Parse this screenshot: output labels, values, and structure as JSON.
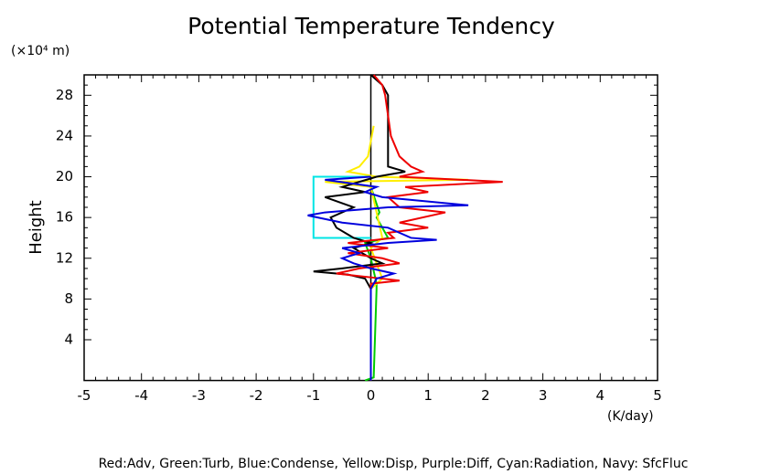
{
  "chart_data": {
    "type": "profile",
    "title": "Potential Temperature Tendency",
    "y_label": "Height",
    "y_unit": "(×10⁴ m)",
    "x_unit": "(K/day)",
    "footer": "Red:Adv, Green:Turb, Blue:Condense, Yellow:Disp, Purple:Diff, Cyan:Radiation, Navy: SfcFluc",
    "xlim": [
      -5,
      5
    ],
    "xticks": [
      -5,
      -4,
      -3,
      -2,
      -1,
      0,
      1,
      2,
      3,
      4,
      5
    ],
    "ylim": [
      0,
      30
    ],
    "yticks": [
      4,
      8,
      12,
      16,
      20,
      24,
      28
    ],
    "series": [
      {
        "color": "#00cc00",
        "heights": [
          19,
          16.5,
          16,
          14,
          13.5,
          12,
          9.5,
          9,
          0.3,
          0
        ],
        "values": [
          0,
          0.15,
          0.1,
          0.3,
          -0.1,
          0,
          0.1,
          0.1,
          0.05,
          -0.1
        ]
      },
      {
        "color": "#ffee00",
        "heights": [
          25,
          22,
          21,
          20.5,
          20,
          19.7,
          19.5,
          19,
          14,
          13,
          10,
          9,
          0
        ],
        "values": [
          0.05,
          -0.05,
          -0.2,
          -0.4,
          0.1,
          1.7,
          -0.8,
          0,
          0.2,
          0,
          0.2,
          0,
          0
        ]
      },
      {
        "color": "#00e5e5",
        "heights": [
          20,
          20,
          14,
          14
        ],
        "values": [
          0,
          -1,
          -1,
          0
        ]
      },
      {
        "color": "#000000",
        "heights": [
          30,
          29,
          28,
          26,
          24,
          22,
          21,
          20.5,
          20,
          19.5,
          19,
          18.5,
          18,
          17,
          16,
          15,
          14,
          13.5,
          13,
          12,
          11.5,
          11,
          10.7,
          10.4,
          10,
          9,
          0
        ],
        "values": [
          0,
          0.2,
          0.3,
          0.3,
          0.3,
          0.3,
          0.3,
          0.6,
          0.1,
          -0.2,
          -0.5,
          -0.1,
          -0.8,
          -0.3,
          -0.7,
          -0.6,
          -0.3,
          0,
          -0.3,
          0,
          0.2,
          -0.5,
          -1,
          -0.4,
          -0.1,
          0,
          0
        ]
      },
      {
        "color": "#ee0000",
        "heights": [
          30,
          29,
          28,
          26,
          24,
          22,
          21,
          20.5,
          20,
          19.5,
          19,
          18.5,
          18,
          17,
          16.5,
          15.5,
          15,
          14.5,
          14,
          13.5,
          13,
          12.5,
          12,
          11.5,
          11,
          10.5,
          10,
          9.8,
          9.5,
          9,
          0
        ],
        "values": [
          0.05,
          0.2,
          0.25,
          0.3,
          0.35,
          0.5,
          0.7,
          0.9,
          0.5,
          2.3,
          0.6,
          1,
          0.3,
          0.5,
          1.3,
          0.5,
          1,
          0.3,
          0.4,
          -0.4,
          0.3,
          -0.4,
          0.2,
          0.5,
          -0.2,
          -0.6,
          0.2,
          0.5,
          0,
          0,
          0
        ]
      },
      {
        "color": "#0000dd",
        "heights": [
          20,
          19.7,
          19,
          18.5,
          18,
          17.2,
          17,
          16.5,
          16.2,
          15.5,
          15,
          14.5,
          14,
          13.8,
          13.5,
          13,
          12.5,
          12,
          11.5,
          11,
          10.5,
          10,
          9,
          0.5,
          0
        ],
        "values": [
          0,
          -0.8,
          0.1,
          -0.1,
          0.2,
          1.7,
          0.3,
          -0.8,
          -1.1,
          -0.5,
          0.3,
          0.5,
          0.7,
          1.15,
          0.3,
          -0.5,
          -0.2,
          -0.5,
          -0.3,
          0,
          0.4,
          0.1,
          0,
          0,
          0
        ]
      }
    ]
  }
}
